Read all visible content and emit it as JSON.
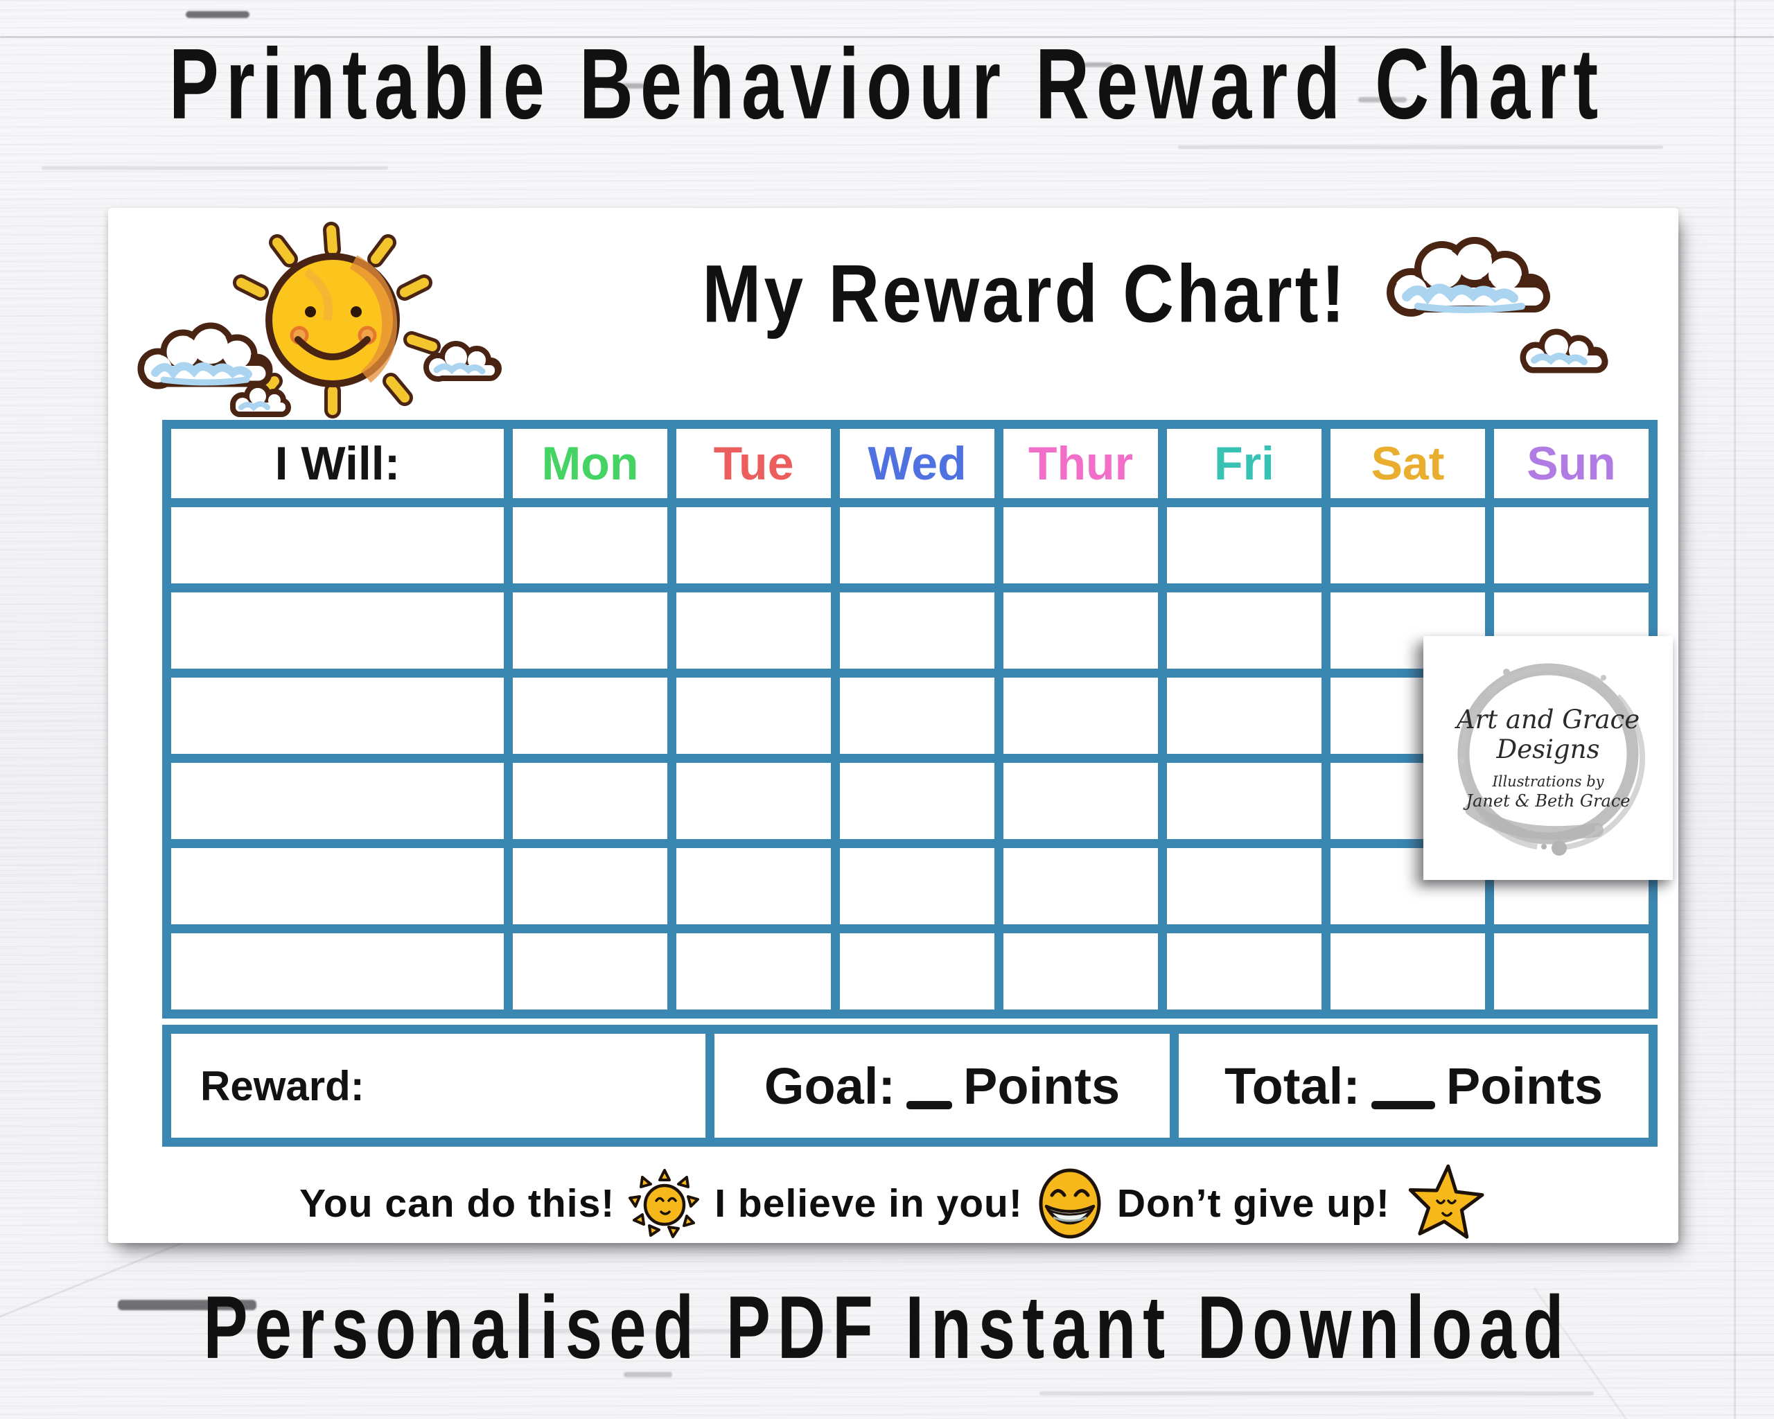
{
  "titles": {
    "top": "Printable Behaviour Reward Chart",
    "card": "My Reward Chart!",
    "bottom": "Personalised PDF Instant Download"
  },
  "table": {
    "first_column": "I Will:",
    "days": [
      {
        "label": "Mon",
        "color": "#45d463"
      },
      {
        "label": "Tue",
        "color": "#ec5e5e"
      },
      {
        "label": "Wed",
        "color": "#4f72e0"
      },
      {
        "label": "Thur",
        "color": "#f16fc9"
      },
      {
        "label": "Fri",
        "color": "#38c2b3"
      },
      {
        "label": "Sat",
        "color": "#e9ae2d"
      },
      {
        "label": "Sun",
        "color": "#b07ce4"
      }
    ],
    "blank_rows": 6,
    "grid_color": "#3a87b2"
  },
  "summary": {
    "reward_label": "Reward:",
    "goal_label": "Goal:",
    "total_label": "Total:",
    "points_label": "Points"
  },
  "encouragements": [
    "You can do this!",
    "I believe in you!",
    "Don’t give up!"
  ],
  "icons": {
    "sun_color": "#fbc51d",
    "outline_color": "#4a2413",
    "cloud_blue": "#abd4f0",
    "emoji_yellow": "#f7b81c"
  },
  "logo": {
    "line1": "Art and Grace",
    "line2": "Designs",
    "line3": "Illustrations by",
    "line4": "Janet & Beth Grace"
  }
}
